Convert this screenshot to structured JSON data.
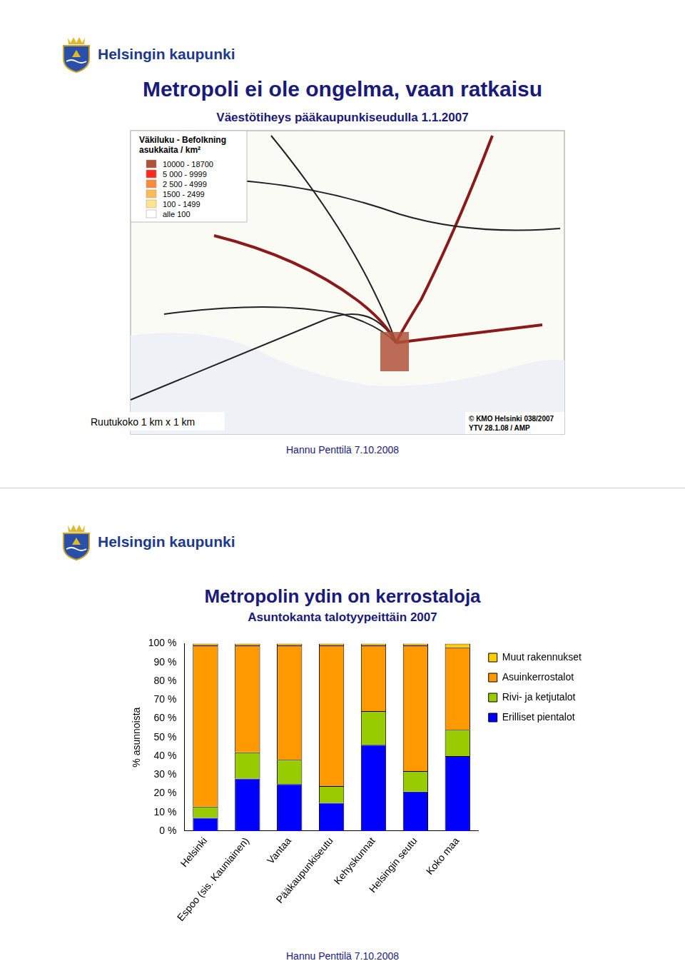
{
  "slides": [
    {
      "logo": "Helsingin kaupunki",
      "title": "Metropoli ei ole ongelma, vaan ratkaisu",
      "subtitle": "Väestötiheys pääkaupunkiseudulla 1.1.2007",
      "map": {
        "legend_title": [
          "Väkiluku - Befolkning",
          "asukkaita / km²"
        ],
        "legend": [
          {
            "label": "10000 - 18700",
            "color": "#b0523a"
          },
          {
            "label": "5 000 - 9999",
            "color": "#ff2a1a"
          },
          {
            "label": "2 500 - 4999",
            "color": "#ff8a3a"
          },
          {
            "label": "1500 - 2499",
            "color": "#ffbb55"
          },
          {
            "label": "100 - 1499",
            "color": "#ffe58a"
          },
          {
            "label": "alle 100",
            "color": "#ffffff"
          }
        ],
        "grid_note": "Ruutukoko 1 km x 1 km",
        "credits": [
          "© KMO Helsinki 038/2007",
          "YTV 28.1.08 / AMP"
        ]
      },
      "footer": "Hannu Penttilä 7.10.2008"
    },
    {
      "logo": "Helsingin kaupunki",
      "footer": "Hannu Penttilä 7.10.2008"
    }
  ],
  "chart_data": {
    "type": "bar",
    "title": "Metropolin ydin on kerrostaloja",
    "subtitle": "Asuntokanta talotyypeittäin 2007",
    "y_label": "% asunnoista",
    "stacked": true,
    "grid": false,
    "legend": "right",
    "categories": [
      "Helsinki",
      "Espoo (sis. Kauniainen)",
      "Vantaa",
      "Pääkaupunkiseutu",
      "Kehyskunnat",
      "Helsingin seutu",
      "Koko maa"
    ],
    "series": [
      {
        "name": "Erilliset pientalot",
        "color": "#0000ff",
        "values": [
          7,
          28,
          25,
          15,
          46,
          21,
          40
        ]
      },
      {
        "name": "Rivi- ja ketjutalot",
        "color": "#99cc00",
        "values": [
          6,
          14,
          13,
          9,
          18,
          11,
          14
        ]
      },
      {
        "name": "Asuinkerrostalot",
        "color": "#ff9900",
        "values": [
          86,
          57,
          61,
          75,
          35,
          67,
          44
        ]
      },
      {
        "name": "Muut rakennukset",
        "color": "#ffcc00",
        "values": [
          1,
          1,
          1,
          1,
          1,
          1,
          2
        ]
      }
    ],
    "ylim": [
      0,
      100
    ],
    "yticks": [
      {
        "value": 0,
        "label": "0 %"
      },
      {
        "value": 10,
        "label": "10 %"
      },
      {
        "value": 20,
        "label": "20 %"
      },
      {
        "value": 30,
        "label": "30 %"
      },
      {
        "value": 40,
        "label": "40 %"
      },
      {
        "value": 50,
        "label": "50 %"
      },
      {
        "value": 60,
        "label": "60 %"
      },
      {
        "value": 70,
        "label": "70 %"
      },
      {
        "value": 80,
        "label": "80 %"
      },
      {
        "value": 90,
        "label": "90 %"
      },
      {
        "value": 100,
        "label": "100 %"
      }
    ]
  }
}
